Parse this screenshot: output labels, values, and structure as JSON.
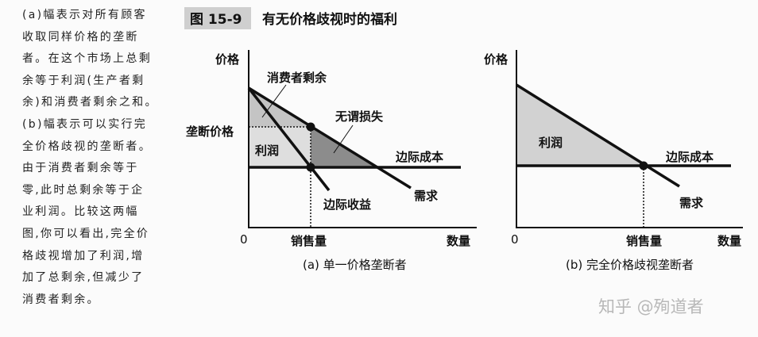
{
  "side_text": [
    "(a)幅表示对所有顾客",
    "收取同样价格的垄断",
    "者。在这个市场上总剩",
    "余等于利润(生产者剩",
    "余)和消费者剩余之和。",
    "(b)幅表示可以实行完",
    "全价格歧视的垄断者。",
    "由于消费者剩余等于",
    "零,此时总剩余等于企",
    "业利润。比较这两幅",
    "图,你可以看出,完全价",
    "格歧视增加了利润,增",
    "加了总剩余,但减少了",
    "消费者剩余。"
  ],
  "figure": {
    "number": "图 15-9",
    "title": "有无价格歧视时的福利",
    "panel_a": {
      "y_axis": "价格",
      "x_axis": "数量",
      "origin": "0",
      "quantity_tick": "销售量",
      "price_tick": "垄断价格",
      "consumer_surplus": "消费者剩余",
      "deadweight_loss": "无谓损失",
      "profit": "利润",
      "marginal_cost": "边际成本",
      "demand": "需求",
      "marginal_revenue": "边际收益",
      "caption": "(a) 单一价格垄断者"
    },
    "panel_b": {
      "y_axis": "价格",
      "x_axis": "数量",
      "origin": "0",
      "quantity_tick": "销售量",
      "profit": "利润",
      "marginal_cost": "边际成本",
      "demand": "需求",
      "caption": "(b) 完全价格歧视垄断者"
    }
  },
  "watermark": "知乎 @殉道者",
  "colors": {
    "consumer_surplus": "#c4c4c4",
    "profit": "#dedede",
    "deadweight_loss": "#8c8c8c",
    "line": "#111111"
  }
}
